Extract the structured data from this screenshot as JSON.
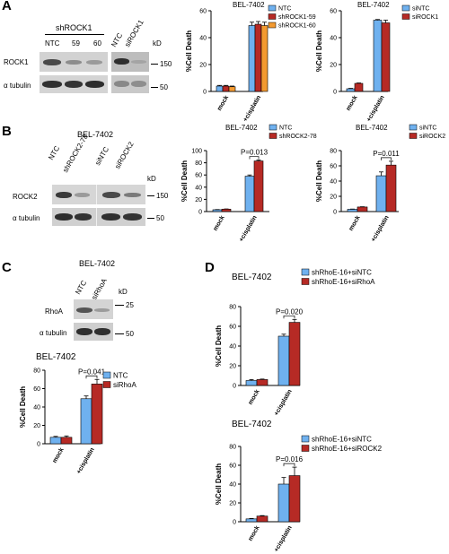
{
  "panels": {
    "A": {
      "label": "A",
      "blot": {
        "title_group": "shROCK1",
        "lanes": [
          "NTC",
          "59",
          "60"
        ],
        "lanes_right": [
          "NTC",
          "siROCK1"
        ],
        "kd": "kD",
        "rows": [
          "ROCK1",
          "α tubulin"
        ],
        "markers": [
          "150",
          "50"
        ]
      }
    },
    "B": {
      "label": "B",
      "blot": {
        "title": "BEL-7402",
        "lanes": [
          "NTC",
          "shROCK2-78",
          "siNTC",
          "siROCK2"
        ],
        "kd": "kD",
        "rows": [
          "ROCK2",
          "α tubulin"
        ],
        "markers": [
          "150",
          "50"
        ]
      }
    },
    "C": {
      "label": "C",
      "blot": {
        "title": "BEL-7402",
        "lanes": [
          "NTC",
          "siRhoA"
        ],
        "kd": "kD",
        "rows": [
          "RhoA",
          "α tubulin"
        ],
        "markers": [
          "25",
          "50"
        ]
      }
    },
    "D": {
      "label": "D"
    }
  },
  "colors": {
    "blue": "#6fb1ef",
    "red": "#b62a25",
    "orange": "#f39a31"
  },
  "chart_data": [
    {
      "id": "A1",
      "type": "bar",
      "title": "BEL-7402",
      "categories": [
        "mock",
        "+cisplatin"
      ],
      "ylabel": "%Cell Death",
      "ylim": [
        0,
        60
      ],
      "yticks": [
        0,
        20,
        40,
        60
      ],
      "series": [
        {
          "name": "NTC",
          "color": "#6fb1ef",
          "values": [
            4,
            49
          ],
          "errors": [
            0.5,
            2.5
          ]
        },
        {
          "name": "shROCK1-59",
          "color": "#b62a25",
          "values": [
            4,
            50
          ],
          "errors": [
            0.5,
            2
          ]
        },
        {
          "name": "shROCK1-60",
          "color": "#f39a31",
          "values": [
            3.5,
            49
          ],
          "errors": [
            0.5,
            2.5
          ]
        }
      ],
      "annotation": ""
    },
    {
      "id": "A2",
      "type": "bar",
      "title": "BEL-7402",
      "categories": [
        "mock",
        "+cisplatin"
      ],
      "ylabel": "%Cell Death",
      "ylim": [
        0,
        60
      ],
      "yticks": [
        0,
        20,
        40,
        60
      ],
      "series": [
        {
          "name": "siNTC",
          "color": "#6fb1ef",
          "values": [
            2,
            53
          ],
          "errors": [
            0.3,
            0.5
          ]
        },
        {
          "name": "siROCK1",
          "color": "#b62a25",
          "values": [
            6,
            51
          ],
          "errors": [
            0.3,
            2
          ]
        }
      ],
      "annotation": ""
    },
    {
      "id": "B1",
      "type": "bar",
      "title": "BEL-7402",
      "categories": [
        "mock",
        "+cisplatin"
      ],
      "ylabel": "%Cell Death",
      "ylim": [
        0,
        100
      ],
      "yticks": [
        0,
        20,
        40,
        60,
        80,
        100
      ],
      "series": [
        {
          "name": "NTC",
          "color": "#6fb1ef",
          "values": [
            3,
            58
          ],
          "errors": [
            0.3,
            2
          ]
        },
        {
          "name": "shROCK2-78",
          "color": "#b62a25",
          "values": [
            4,
            83
          ],
          "errors": [
            0.3,
            1.5
          ]
        }
      ],
      "annotation": "P=0.013"
    },
    {
      "id": "B2",
      "type": "bar",
      "title": "BEL-7402",
      "categories": [
        "mock",
        "+cisplatin"
      ],
      "ylabel": "%Cell Death",
      "ylim": [
        0,
        80
      ],
      "yticks": [
        0,
        20,
        40,
        60,
        80
      ],
      "series": [
        {
          "name": "siNTC",
          "color": "#6fb1ef",
          "values": [
            3,
            47
          ],
          "errors": [
            0.3,
            5
          ]
        },
        {
          "name": "siROCK2",
          "color": "#b62a25",
          "values": [
            6,
            61
          ],
          "errors": [
            0.3,
            5
          ]
        }
      ],
      "annotation": "P=0.011"
    },
    {
      "id": "C1",
      "type": "bar",
      "title": "BEL-7402",
      "categories": [
        "mock",
        "+cisplatin"
      ],
      "ylabel": "%Cell Death",
      "ylim": [
        0,
        80
      ],
      "yticks": [
        0,
        20,
        40,
        60,
        80
      ],
      "series": [
        {
          "name": "NTC",
          "color": "#6fb1ef",
          "values": [
            7,
            49
          ],
          "errors": [
            1,
            3
          ]
        },
        {
          "name": "siRhoA",
          "color": "#b62a25",
          "values": [
            7,
            65
          ],
          "errors": [
            1.5,
            5
          ]
        }
      ],
      "annotation": "P=0.041"
    },
    {
      "id": "D1",
      "type": "bar",
      "title": "BEL-7402",
      "categories": [
        "mock",
        "+cisplatin"
      ],
      "ylabel": "%Cell Death",
      "ylim": [
        0,
        80
      ],
      "yticks": [
        0,
        20,
        40,
        60,
        80
      ],
      "series": [
        {
          "name": "shRhoE-16+siNTC",
          "color": "#6fb1ef",
          "values": [
            5,
            50
          ],
          "errors": [
            1,
            2
          ]
        },
        {
          "name": "shRhoE-16+siRhoA",
          "color": "#b62a25",
          "values": [
            6,
            64
          ],
          "errors": [
            0.5,
            3
          ]
        }
      ],
      "annotation": "P=0.020"
    },
    {
      "id": "D2",
      "type": "bar",
      "title": "BEL-7402",
      "categories": [
        "mock",
        "+cisplatin"
      ],
      "ylabel": "%Cell Death",
      "ylim": [
        0,
        80
      ],
      "yticks": [
        0,
        20,
        40,
        60,
        80
      ],
      "series": [
        {
          "name": "shRhoE-16+siNTC",
          "color": "#6fb1ef",
          "values": [
            3,
            40
          ],
          "errors": [
            0.5,
            7
          ]
        },
        {
          "name": "shRhoE-16+siROCK2",
          "color": "#b62a25",
          "values": [
            6,
            49
          ],
          "errors": [
            0.5,
            9
          ]
        }
      ],
      "annotation": "P=0.016"
    }
  ]
}
